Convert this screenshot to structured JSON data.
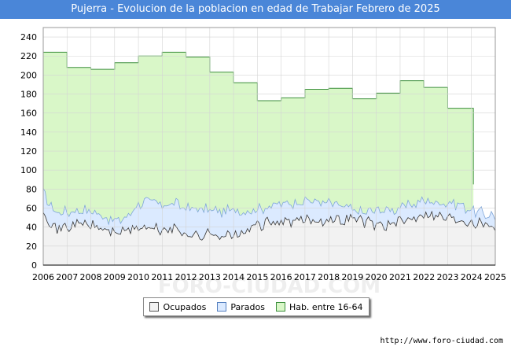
{
  "title": "Pujerra - Evolucion de la poblacion en edad de Trabajar Febrero de 2025",
  "source": "http://www.foro-ciudad.com",
  "watermark": "FORO-CIUDAD.COM",
  "colors": {
    "ocupados": "#f2f2f2",
    "parados": "#dbeaff",
    "hab": "#d9f7c8",
    "hab_line": "#3d8f3d",
    "title_bg": "#4a86d8"
  },
  "chart_data": {
    "type": "area",
    "title": "Pujerra - Evolucion de la poblacion en edad de Trabajar Febrero de 2025",
    "xlabel": "",
    "ylabel": "",
    "xlim": [
      2006,
      2025
    ],
    "ylim": [
      0,
      250
    ],
    "y_ticks": [
      0,
      20,
      40,
      60,
      80,
      100,
      120,
      140,
      160,
      180,
      200,
      220,
      240
    ],
    "x_ticks": [
      "2006",
      "2007",
      "2008",
      "2009",
      "2010",
      "2011",
      "2012",
      "2013",
      "2014",
      "2015",
      "2016",
      "2017",
      "2018",
      "2019",
      "2020",
      "2021",
      "2022",
      "2023",
      "2024",
      "2025"
    ],
    "grid": true,
    "legend_position": "bottom",
    "series": [
      {
        "name": "Hab. entre 16-64",
        "type": "step",
        "x": [
          2006,
          2007,
          2008,
          2009,
          2010,
          2011,
          2012,
          2013,
          2014,
          2015,
          2016,
          2017,
          2018,
          2019,
          2020,
          2021,
          2022,
          2023,
          2024.08
        ],
        "values": [
          224,
          208,
          206,
          213,
          220,
          224,
          219,
          203,
          192,
          173,
          176,
          185,
          186,
          175,
          181,
          194,
          187,
          165,
          165
        ]
      },
      {
        "name": "Parados",
        "anchors_x": [
          2006,
          2006.5,
          2007,
          2007.5,
          2008,
          2008.5,
          2009,
          2009.5,
          2010,
          2010.5,
          2011,
          2011.5,
          2012,
          2012.5,
          2013,
          2013.5,
          2014,
          2014.5,
          2015,
          2015.5,
          2016,
          2016.5,
          2017,
          2017.5,
          2018,
          2018.5,
          2019,
          2019.5,
          2020,
          2020.5,
          2021,
          2021.5,
          2022,
          2022.5,
          2023,
          2023.5,
          2024,
          2024.5,
          2025
        ],
        "values": [
          75,
          56,
          56,
          58,
          57,
          52,
          46,
          50,
          65,
          67,
          63,
          65,
          60,
          59,
          58,
          56,
          58,
          57,
          59,
          62,
          64,
          66,
          68,
          67,
          65,
          62,
          58,
          55,
          58,
          58,
          60,
          64,
          68,
          66,
          66,
          64,
          58,
          54,
          52
        ]
      },
      {
        "name": "Ocupados",
        "anchors_x": [
          2006,
          2006.5,
          2007,
          2007.5,
          2008,
          2008.5,
          2009,
          2009.5,
          2010,
          2010.5,
          2011,
          2011.5,
          2012,
          2012.5,
          2013,
          2013.5,
          2014,
          2014.5,
          2015,
          2015.5,
          2016,
          2016.5,
          2017,
          2017.5,
          2018,
          2018.5,
          2019,
          2019.5,
          2020,
          2020.5,
          2021,
          2021.5,
          2022,
          2022.5,
          2023,
          2023.5,
          2024,
          2024.5,
          2025
        ],
        "values": [
          58,
          38,
          40,
          44,
          42,
          38,
          35,
          36,
          40,
          38,
          37,
          38,
          34,
          30,
          33,
          32,
          30,
          35,
          42,
          44,
          46,
          45,
          48,
          47,
          48,
          47,
          50,
          46,
          43,
          42,
          45,
          50,
          55,
          52,
          50,
          48,
          46,
          44,
          41
        ]
      }
    ]
  },
  "legend": {
    "ocupados": "Ocupados",
    "parados": "Parados",
    "hab": "Hab. entre 16-64"
  }
}
